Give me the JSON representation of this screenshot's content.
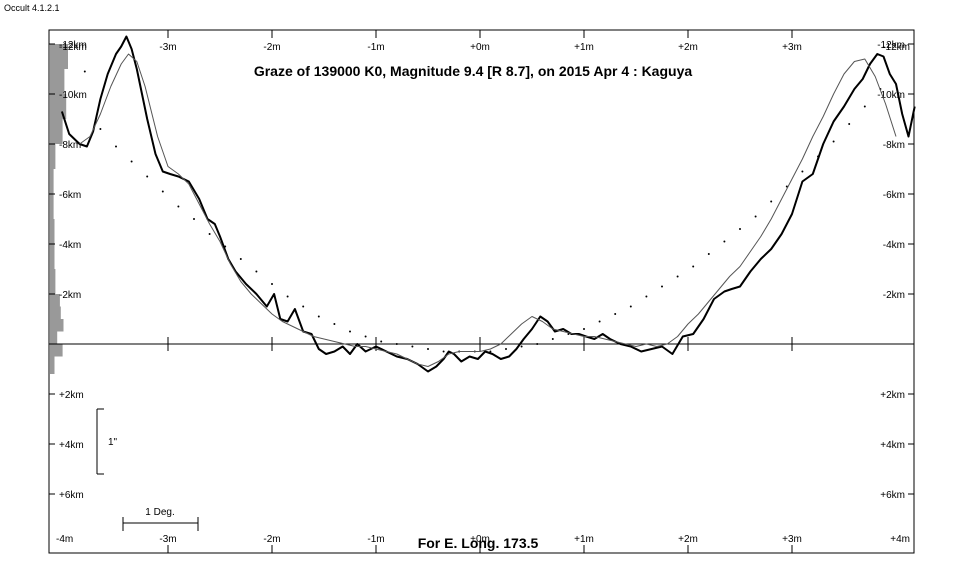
{
  "window": {
    "app_title": "Occult 4.1.2.1"
  },
  "chart_data": {
    "type": "line",
    "title": "Graze of  139000 K0,  Magnitude 9.4 [R 8.7],  on 2015 Apr  4  :  Kaguya",
    "footer": "For E. Long. 173.5",
    "x_tick_labels": [
      {
        "x": -3,
        "label": "-3m"
      },
      {
        "x": -2,
        "label": "-2m"
      },
      {
        "x": -1,
        "label": "-1m"
      },
      {
        "x": 0,
        "label": "+0m"
      },
      {
        "x": 1,
        "label": "+1m"
      },
      {
        "x": 2,
        "label": "+2m"
      },
      {
        "x": 3,
        "label": "+3m"
      }
    ],
    "x_edge_labels_top": {
      "left": "-12km",
      "right": "-12km"
    },
    "x_edge_labels_bottom": {
      "left": "-4m",
      "right": "+4m"
    },
    "xlim": [
      -4.2,
      4.2
    ],
    "ylim": [
      -12.5,
      8.2
    ],
    "y_ticks": [
      {
        "y": -12,
        "label": "-12km"
      },
      {
        "y": -10,
        "label": "-10km"
      },
      {
        "y": -8,
        "label": "-8km"
      },
      {
        "y": -6,
        "label": "-6km"
      },
      {
        "y": -4,
        "label": "-4km"
      },
      {
        "y": -2,
        "label": "-2km"
      },
      {
        "y": 2,
        "label": "+2km"
      },
      {
        "y": 4,
        "label": "+4km"
      },
      {
        "y": 6,
        "label": "+6km"
      }
    ],
    "scale_bar_vertical_label": "1\"",
    "scale_bar_horizontal_label": "1 Deg.",
    "series": [
      {
        "role": "observed-limb-profile",
        "color": "#000000",
        "x": [
          -4.02,
          -3.95,
          -3.85,
          -3.78,
          -3.72,
          -3.65,
          -3.58,
          -3.5,
          -3.45,
          -3.4,
          -3.35,
          -3.3,
          -3.25,
          -3.2,
          -3.12,
          -3.05,
          -2.98,
          -2.9,
          -2.8,
          -2.7,
          -2.62,
          -2.55,
          -2.5,
          -2.42,
          -2.35,
          -2.25,
          -2.15,
          -2.05,
          -1.98,
          -1.92,
          -1.85,
          -1.78,
          -1.7,
          -1.62,
          -1.55,
          -1.48,
          -1.4,
          -1.32,
          -1.25,
          -1.18,
          -1.1,
          -1.0,
          -0.9,
          -0.8,
          -0.7,
          -0.6,
          -0.5,
          -0.42,
          -0.35,
          -0.3,
          -0.25,
          -0.18,
          -0.1,
          -0.02,
          0.05,
          0.12,
          0.2,
          0.28,
          0.35,
          0.42,
          0.5,
          0.58,
          0.65,
          0.72,
          0.8,
          0.88,
          0.95,
          1.02,
          1.1,
          1.18,
          1.25,
          1.35,
          1.45,
          1.55,
          1.65,
          1.75,
          1.85,
          1.95,
          2.05,
          2.15,
          2.25,
          2.35,
          2.42,
          2.5,
          2.6,
          2.7,
          2.8,
          2.9,
          3.0,
          3.1,
          3.2,
          3.3,
          3.4,
          3.5,
          3.6,
          3.68,
          3.75,
          3.82,
          3.88,
          3.94,
          4.0,
          4.06,
          4.12,
          4.18
        ],
        "y": [
          -9.3,
          -8.4,
          -8.0,
          -7.9,
          -8.5,
          -9.8,
          -10.8,
          -11.6,
          -11.9,
          -12.3,
          -11.8,
          -11.0,
          -10.0,
          -9.0,
          -7.6,
          -6.9,
          -6.8,
          -6.7,
          -6.5,
          -5.8,
          -5.0,
          -4.8,
          -4.3,
          -3.4,
          -2.9,
          -2.4,
          -2.0,
          -1.5,
          -2.0,
          -1.0,
          -0.9,
          -1.4,
          -0.5,
          -0.4,
          0.2,
          0.4,
          0.3,
          0.1,
          0.4,
          0.0,
          0.3,
          0.1,
          0.3,
          0.5,
          0.6,
          0.8,
          1.1,
          0.9,
          0.6,
          0.3,
          0.4,
          0.7,
          0.5,
          0.6,
          0.3,
          0.4,
          0.6,
          0.5,
          0.2,
          -0.2,
          -0.6,
          -1.1,
          -0.9,
          -0.5,
          -0.6,
          -0.4,
          -0.4,
          -0.3,
          -0.2,
          -0.4,
          -0.2,
          0.0,
          0.1,
          0.3,
          0.2,
          0.1,
          0.4,
          -0.3,
          -0.4,
          -1.0,
          -1.8,
          -2.1,
          -2.2,
          -2.3,
          -2.9,
          -3.4,
          -3.8,
          -4.4,
          -5.2,
          -6.5,
          -6.8,
          -8.0,
          -8.9,
          -9.5,
          -10.2,
          -10.6,
          -11.2,
          -11.6,
          -11.5,
          -10.8,
          -10.4,
          -9.2,
          -8.3,
          -9.5
        ]
      },
      {
        "role": "smoothed-profile",
        "color": "#555555",
        "x": [
          -3.85,
          -3.75,
          -3.65,
          -3.55,
          -3.45,
          -3.38,
          -3.3,
          -3.22,
          -3.1,
          -3.0,
          -2.9,
          -2.8,
          -2.7,
          -2.6,
          -2.5,
          -2.4,
          -2.3,
          -2.2,
          -2.1,
          -2.0,
          -1.9,
          -1.8,
          -1.7,
          -1.6,
          -1.5,
          -1.4,
          -1.3,
          -1.2,
          -1.1,
          -1.0,
          -0.9,
          -0.8,
          -0.7,
          -0.6,
          -0.5,
          -0.4,
          -0.3,
          -0.2,
          -0.1,
          0.0,
          0.1,
          0.2,
          0.3,
          0.4,
          0.5,
          0.6,
          0.7,
          0.8,
          0.9,
          1.0,
          1.1,
          1.2,
          1.3,
          1.4,
          1.5,
          1.6,
          1.7,
          1.8,
          1.9,
          2.0,
          2.1,
          2.2,
          2.3,
          2.4,
          2.5,
          2.6,
          2.7,
          2.8,
          2.9,
          3.0,
          3.1,
          3.2,
          3.3,
          3.4,
          3.5,
          3.6,
          3.7,
          3.8,
          3.9,
          4.0
        ],
        "y": [
          -8.0,
          -8.3,
          -9.2,
          -10.3,
          -11.2,
          -11.6,
          -11.3,
          -10.3,
          -8.3,
          -7.1,
          -6.8,
          -6.4,
          -5.6,
          -4.8,
          -4.1,
          -3.2,
          -2.5,
          -2.0,
          -1.6,
          -1.2,
          -0.9,
          -0.7,
          -0.5,
          -0.3,
          -0.2,
          -0.1,
          0.0,
          0.1,
          0.1,
          0.2,
          0.3,
          0.4,
          0.6,
          0.8,
          0.9,
          0.7,
          0.4,
          0.3,
          0.3,
          0.3,
          0.2,
          0.0,
          -0.4,
          -0.8,
          -1.1,
          -0.9,
          -0.6,
          -0.5,
          -0.4,
          -0.3,
          -0.3,
          -0.2,
          -0.1,
          0.0,
          0.1,
          0.0,
          0.1,
          0.0,
          -0.3,
          -0.8,
          -1.2,
          -1.7,
          -2.2,
          -2.7,
          -3.1,
          -3.7,
          -4.3,
          -5.0,
          -5.8,
          -6.6,
          -7.4,
          -8.3,
          -9.1,
          -10.0,
          -10.8,
          -11.3,
          -11.4,
          -10.7,
          -9.6,
          -8.3
        ]
      },
      {
        "role": "predicted-limb-dots",
        "color": "#000000",
        "x": [
          -3.8,
          -3.65,
          -3.5,
          -3.35,
          -3.2,
          -3.05,
          -2.9,
          -2.75,
          -2.6,
          -2.45,
          -2.3,
          -2.15,
          -2.0,
          -1.85,
          -1.7,
          -1.55,
          -1.4,
          -1.25,
          -1.1,
          -0.95,
          -0.8,
          -0.65,
          -0.5,
          -0.35,
          -0.2,
          -0.05,
          0.1,
          0.25,
          0.4,
          0.55,
          0.7,
          0.85,
          1.0,
          1.15,
          1.3,
          1.45,
          1.6,
          1.75,
          1.9,
          2.05,
          2.2,
          2.35,
          2.5,
          2.65,
          2.8,
          2.95,
          3.1,
          3.25,
          3.4,
          3.55,
          3.7,
          3.85
        ],
        "y": [
          -10.9,
          -8.6,
          -7.9,
          -7.3,
          -6.7,
          -6.1,
          -5.5,
          -5.0,
          -4.4,
          -3.9,
          -3.4,
          -2.9,
          -2.4,
          -1.9,
          -1.5,
          -1.1,
          -0.8,
          -0.5,
          -0.3,
          -0.1,
          0.0,
          0.1,
          0.2,
          0.3,
          0.3,
          0.3,
          0.3,
          0.2,
          0.1,
          0.0,
          -0.2,
          -0.4,
          -0.6,
          -0.9,
          -1.2,
          -1.5,
          -1.9,
          -2.3,
          -2.7,
          -3.1,
          -3.6,
          -4.1,
          -4.6,
          -5.1,
          -5.7,
          -6.3,
          -6.9,
          -7.5,
          -8.1,
          -8.8,
          -9.5,
          -10.2
        ]
      }
    ],
    "left_histogram": {
      "color": "#999999",
      "bins": [
        {
          "y0": -12,
          "y1": -11,
          "value": 1.0
        },
        {
          "y0": -11,
          "y1": -10,
          "value": 0.8
        },
        {
          "y0": -10,
          "y1": -9,
          "value": 0.9
        },
        {
          "y0": -9,
          "y1": -8,
          "value": 0.7
        },
        {
          "y0": -8,
          "y1": -7,
          "value": 0.3
        },
        {
          "y0": -7,
          "y1": -6,
          "value": 0.2
        },
        {
          "y0": -6,
          "y1": -5,
          "value": 0.2
        },
        {
          "y0": -5,
          "y1": -4,
          "value": 0.25
        },
        {
          "y0": -4,
          "y1": -3,
          "value": 0.25
        },
        {
          "y0": -3,
          "y1": -2,
          "value": 0.3
        },
        {
          "y0": -2,
          "y1": -1.5,
          "value": 0.55
        },
        {
          "y0": -1.5,
          "y1": -1,
          "value": 0.6
        },
        {
          "y0": -1,
          "y1": -0.5,
          "value": 0.75
        },
        {
          "y0": -0.5,
          "y1": 0,
          "value": 0.4
        },
        {
          "y0": 0,
          "y1": 0.5,
          "value": 0.7
        },
        {
          "y0": 0.5,
          "y1": 1.2,
          "value": 0.25
        }
      ]
    }
  }
}
